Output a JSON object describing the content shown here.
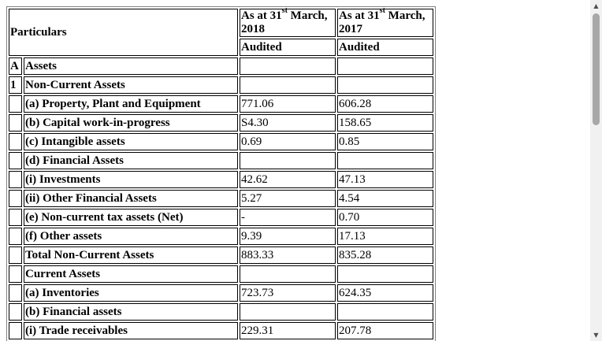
{
  "header": {
    "particulars": "Particulars",
    "col_2018_prefix": "As at 31",
    "col_2018_sup": "st",
    "col_2018_suffix": " March, 2018",
    "col_2017_prefix": "As at 31",
    "col_2017_sup": "st",
    "col_2017_suffix": " March, 2017",
    "audited_2018": "Audited",
    "audited_2017": "Audited"
  },
  "rows": [
    {
      "marker": "A",
      "label": "Assets",
      "v2018": "",
      "v2017": ""
    },
    {
      "marker": "1",
      "label": "Non-Current Assets",
      "v2018": "",
      "v2017": ""
    },
    {
      "marker": "",
      "label": "(a) Property, Plant and Equipment",
      "v2018": "771.06",
      "v2017": "606.28"
    },
    {
      "marker": "",
      "label": "(b) Capital work-in-progress",
      "v2018": "S4.30",
      "v2017": "158.65"
    },
    {
      "marker": "",
      "label": "(c) Intangible assets",
      "v2018": "0.69",
      "v2017": "0.85"
    },
    {
      "marker": "",
      "label": "(d) Financial Assets",
      "v2018": "",
      "v2017": ""
    },
    {
      "marker": "",
      "label": "(i) Investments",
      "v2018": "42.62",
      "v2017": "47.13"
    },
    {
      "marker": "",
      "label": "(ii) Other Financial Assets",
      "v2018": "5.27",
      "v2017": "4.54"
    },
    {
      "marker": "",
      "label": "(e) Non-current tax assets (Net)",
      "v2018": "-",
      "v2017": "0.70"
    },
    {
      "marker": "",
      "label": "(f) Other assets",
      "v2018": "9.39",
      "v2017": "17.13"
    },
    {
      "marker": "",
      "label": "Total Non-Current Assets",
      "v2018": "883.33",
      "v2017": "835.28"
    },
    {
      "marker": "",
      "label": "Current Assets",
      "v2018": "",
      "v2017": ""
    },
    {
      "marker": "",
      "label": "(a) Inventories",
      "v2018": "723.73",
      "v2017": "624.35"
    },
    {
      "marker": "",
      "label": "(b) Financial assets",
      "v2018": "",
      "v2017": ""
    },
    {
      "marker": "",
      "label": "(i) Trade receivables",
      "v2018": "229.31",
      "v2017": "207.78"
    }
  ],
  "scrollbar": {
    "up_icon": "triangle-up",
    "down_icon": "triangle-down"
  }
}
